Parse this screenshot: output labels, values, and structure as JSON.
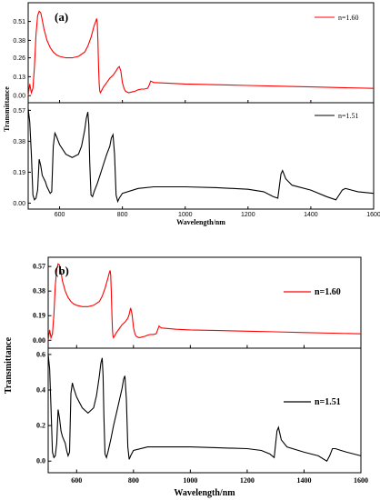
{
  "chart_data": [
    {
      "type": "line",
      "panel_label": "(a)",
      "xlabel": "Wavelength/nm",
      "ylabel": "Transmittance",
      "xlim": [
        500,
        1600
      ],
      "x_ticks": [
        "600",
        "800",
        "1000",
        "1200",
        "1400",
        "1600"
      ],
      "grid": false,
      "legend_placement": "top-right, one per sub-plot",
      "series": [
        {
          "name": "n=1.60",
          "color": "#ff0000",
          "ylim": [
            -0.03,
            0.62
          ],
          "y_ticks": [
            "0.00",
            "0.13",
            "0.26",
            "0.38",
            "0.51"
          ],
          "x": [
            500,
            505,
            510,
            515,
            520,
            525,
            530,
            535,
            540,
            545,
            550,
            560,
            570,
            580,
            590,
            600,
            620,
            640,
            660,
            680,
            690,
            700,
            705,
            710,
            715,
            718,
            720,
            722,
            724,
            726,
            728,
            730,
            735,
            740,
            750,
            760,
            770,
            780,
            785,
            790,
            795,
            800,
            805,
            810,
            820,
            830,
            840,
            850,
            860,
            870,
            880,
            885,
            890,
            895,
            900,
            950,
            1000,
            1100,
            1200,
            1300,
            1400,
            1500,
            1600
          ],
          "y": [
            0.0,
            0.08,
            0.02,
            0.05,
            0.2,
            0.42,
            0.55,
            0.58,
            0.57,
            0.52,
            0.46,
            0.38,
            0.33,
            0.3,
            0.28,
            0.27,
            0.26,
            0.26,
            0.27,
            0.3,
            0.34,
            0.4,
            0.44,
            0.48,
            0.51,
            0.53,
            0.5,
            0.38,
            0.2,
            0.08,
            0.03,
            0.02,
            0.04,
            0.06,
            0.09,
            0.12,
            0.14,
            0.17,
            0.19,
            0.2,
            0.17,
            0.09,
            0.05,
            0.03,
            0.02,
            0.025,
            0.03,
            0.04,
            0.045,
            0.045,
            0.05,
            0.07,
            0.1,
            0.095,
            0.09,
            0.085,
            0.08,
            0.075,
            0.07,
            0.065,
            0.06,
            0.055,
            0.05
          ]
        },
        {
          "name": "n=1.51",
          "color": "#000000",
          "ylim": [
            -0.02,
            0.6
          ],
          "y_ticks": [
            "0.00",
            "0.19",
            "0.38",
            "0.57"
          ],
          "x": [
            500,
            505,
            510,
            515,
            520,
            525,
            530,
            535,
            540,
            545,
            550,
            555,
            560,
            565,
            570,
            575,
            580,
            585,
            590,
            600,
            620,
            640,
            660,
            670,
            680,
            685,
            690,
            693,
            696,
            700,
            705,
            710,
            720,
            730,
            740,
            750,
            760,
            765,
            770,
            775,
            780,
            785,
            790,
            800,
            850,
            900,
            1000,
            1100,
            1200,
            1250,
            1280,
            1295,
            1305,
            1310,
            1320,
            1340,
            1400,
            1450,
            1480,
            1490,
            1500,
            1510,
            1530,
            1550,
            1600
          ],
          "y": [
            0.58,
            0.5,
            0.3,
            0.05,
            0.02,
            0.03,
            0.08,
            0.27,
            0.23,
            0.17,
            0.15,
            0.13,
            0.1,
            0.08,
            0.06,
            0.07,
            0.35,
            0.43,
            0.41,
            0.36,
            0.3,
            0.28,
            0.3,
            0.35,
            0.45,
            0.52,
            0.56,
            0.48,
            0.25,
            0.05,
            0.04,
            0.07,
            0.12,
            0.18,
            0.24,
            0.3,
            0.35,
            0.4,
            0.42,
            0.3,
            0.05,
            0.01,
            0.03,
            0.06,
            0.09,
            0.1,
            0.1,
            0.095,
            0.085,
            0.07,
            0.04,
            0.03,
            0.18,
            0.2,
            0.15,
            0.11,
            0.08,
            0.04,
            0.02,
            0.05,
            0.08,
            0.09,
            0.08,
            0.07,
            0.06
          ]
        }
      ]
    },
    {
      "type": "line",
      "panel_label": "(b)",
      "xlabel": "Wavelength/nm",
      "ylabel": "Transmittance",
      "xlim": [
        500,
        1600
      ],
      "x_ticks": [
        "600",
        "800",
        "1000",
        "1200",
        "1400",
        "1600"
      ],
      "grid": false,
      "legend_placement": "top-right, one per sub-plot",
      "series": [
        {
          "name": "n=1.60",
          "color": "#ff0000",
          "ylim": [
            -0.04,
            0.62
          ],
          "y_ticks": [
            "0.00",
            "0.19",
            "0.38",
            "0.57"
          ],
          "x": [
            500,
            505,
            510,
            515,
            520,
            525,
            530,
            535,
            540,
            545,
            550,
            560,
            570,
            580,
            590,
            600,
            620,
            640,
            660,
            680,
            690,
            700,
            705,
            710,
            715,
            718,
            720,
            722,
            724,
            726,
            728,
            730,
            735,
            740,
            750,
            760,
            770,
            780,
            785,
            790,
            795,
            800,
            805,
            810,
            820,
            830,
            840,
            850,
            860,
            870,
            880,
            885,
            890,
            895,
            900,
            950,
            1000,
            1100,
            1200,
            1300,
            1400,
            1500,
            1600
          ],
          "y": [
            0.0,
            0.08,
            0.02,
            0.05,
            0.2,
            0.42,
            0.55,
            0.59,
            0.58,
            0.53,
            0.46,
            0.38,
            0.33,
            0.3,
            0.28,
            0.27,
            0.26,
            0.26,
            0.27,
            0.3,
            0.34,
            0.4,
            0.44,
            0.48,
            0.52,
            0.54,
            0.5,
            0.38,
            0.2,
            0.08,
            0.03,
            0.02,
            0.04,
            0.06,
            0.09,
            0.12,
            0.14,
            0.17,
            0.2,
            0.25,
            0.2,
            0.1,
            0.05,
            0.03,
            0.02,
            0.025,
            0.03,
            0.04,
            0.045,
            0.045,
            0.05,
            0.08,
            0.11,
            0.1,
            0.095,
            0.085,
            0.08,
            0.075,
            0.07,
            0.065,
            0.06,
            0.055,
            0.05
          ]
        },
        {
          "name": "n=1.51",
          "color": "#000000",
          "ylim": [
            -0.05,
            0.62
          ],
          "y_ticks": [
            "0.0",
            "0.2",
            "0.4",
            "0.6"
          ],
          "x": [
            500,
            505,
            510,
            515,
            520,
            525,
            530,
            535,
            540,
            545,
            550,
            555,
            560,
            565,
            570,
            575,
            580,
            585,
            590,
            600,
            620,
            640,
            660,
            670,
            680,
            685,
            690,
            693,
            696,
            700,
            705,
            710,
            720,
            730,
            740,
            750,
            760,
            765,
            770,
            775,
            780,
            785,
            790,
            800,
            850,
            900,
            1000,
            1100,
            1200,
            1250,
            1280,
            1295,
            1305,
            1310,
            1320,
            1340,
            1400,
            1450,
            1480,
            1490,
            1500,
            1510,
            1530,
            1550,
            1600
          ],
          "y": [
            0.6,
            0.52,
            0.3,
            0.05,
            0.02,
            0.03,
            0.1,
            0.29,
            0.24,
            0.17,
            0.14,
            0.12,
            0.1,
            0.06,
            0.03,
            0.05,
            0.38,
            0.44,
            0.41,
            0.36,
            0.3,
            0.27,
            0.3,
            0.37,
            0.48,
            0.55,
            0.58,
            0.48,
            0.25,
            0.04,
            0.02,
            0.05,
            0.12,
            0.2,
            0.27,
            0.34,
            0.41,
            0.46,
            0.48,
            0.35,
            0.08,
            0.01,
            0.03,
            0.06,
            0.08,
            0.08,
            0.08,
            0.075,
            0.07,
            0.06,
            0.04,
            0.02,
            0.17,
            0.19,
            0.12,
            0.08,
            0.05,
            0.03,
            0.0,
            0.03,
            0.07,
            0.07,
            0.06,
            0.05,
            0.03
          ]
        }
      ]
    }
  ]
}
